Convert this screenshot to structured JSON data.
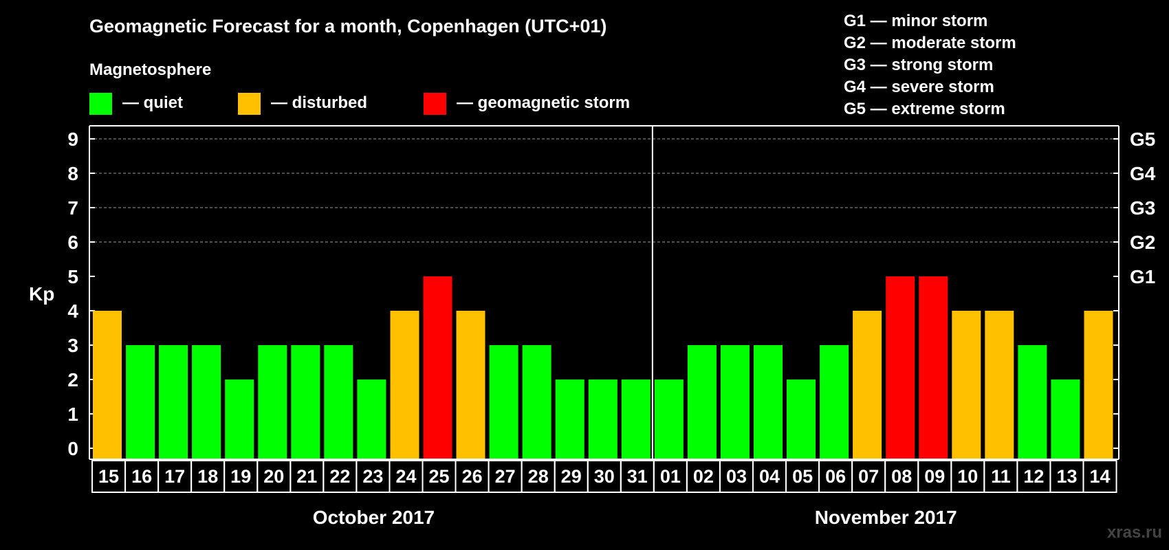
{
  "chart_data": {
    "type": "bar",
    "title": "Geomagnetic Forecast for a month, Copenhagen (UTC+01)",
    "legend_heading": "Magnetosphere",
    "legend": [
      {
        "label": "— quiet",
        "color": "#00ff00"
      },
      {
        "label": "— disturbed",
        "color": "#ffc000"
      },
      {
        "label": "— geomagnetic storm",
        "color": "#ff0000"
      }
    ],
    "storm_scale": [
      "G1 — minor storm",
      "G2 — moderate storm",
      "G3 — strong storm",
      "G4 — severe storm",
      "G5 — extreme storm"
    ],
    "ylabel": "Kp",
    "ylim": [
      0,
      9
    ],
    "yticks": [
      0,
      1,
      2,
      3,
      4,
      5,
      6,
      7,
      8,
      9
    ],
    "right_ticks": [
      {
        "kp": 5,
        "label": "G1"
      },
      {
        "kp": 6,
        "label": "G2"
      },
      {
        "kp": 7,
        "label": "G3"
      },
      {
        "kp": 8,
        "label": "G4"
      },
      {
        "kp": 9,
        "label": "G5"
      }
    ],
    "grid_levels": [
      6,
      7,
      8,
      9
    ],
    "months": [
      {
        "label": "October 2017",
        "start_index": 0,
        "end_index": 16
      },
      {
        "label": "November 2017",
        "start_index": 17,
        "end_index": 30
      }
    ],
    "categories": [
      "15",
      "16",
      "17",
      "18",
      "19",
      "20",
      "21",
      "22",
      "23",
      "24",
      "25",
      "26",
      "27",
      "28",
      "29",
      "30",
      "31",
      "01",
      "02",
      "03",
      "04",
      "05",
      "06",
      "07",
      "08",
      "09",
      "10",
      "11",
      "12",
      "13",
      "14"
    ],
    "values": [
      4,
      3,
      3,
      3,
      2,
      3,
      3,
      3,
      2,
      4,
      5,
      4,
      3,
      3,
      2,
      2,
      2,
      2,
      3,
      3,
      3,
      2,
      3,
      4,
      5,
      5,
      4,
      4,
      3,
      2,
      4
    ],
    "colors": {
      "quiet": "#00ff00",
      "disturbed": "#ffc000",
      "storm": "#ff0000"
    }
  },
  "watermark": "xras.ru"
}
